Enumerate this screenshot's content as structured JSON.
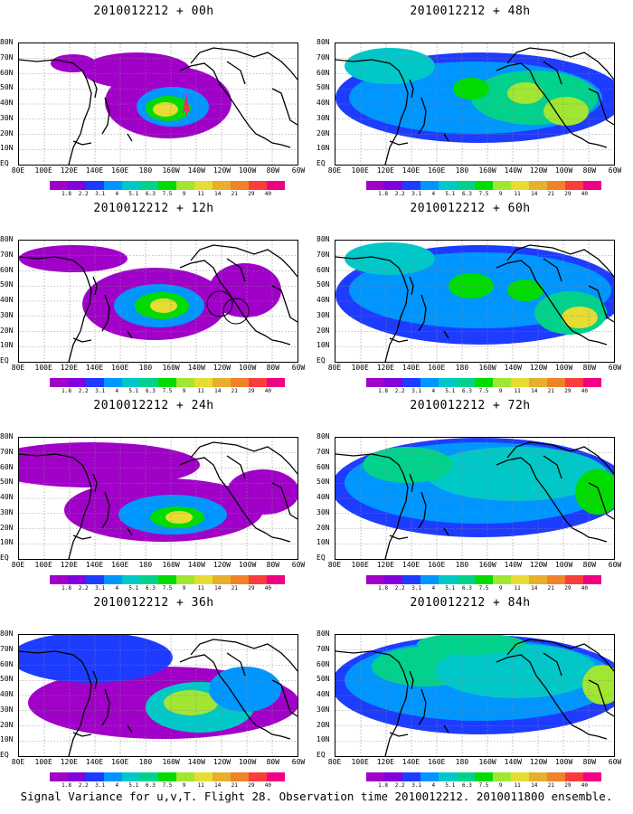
{
  "caption": "Signal Variance for u,v,T. Flight 28. Observation time 2010012212. 2010011800 ensemble.",
  "y_ticks": [
    "80N",
    "70N",
    "60N",
    "50N",
    "40N",
    "30N",
    "20N",
    "10N",
    "EQ"
  ],
  "x_ticks": [
    "80E",
    "100E",
    "120E",
    "140E",
    "160E",
    "180",
    "160W",
    "140W",
    "120W",
    "100W",
    "80W",
    "60W"
  ],
  "colorbar": {
    "labels": [
      "1.8",
      "2.2",
      "3.1",
      "4",
      "5.1",
      "6.3",
      "7.5",
      "9",
      "11",
      "14",
      "21",
      "29",
      "40"
    ],
    "colors": [
      "#a000c8",
      "#8200dc",
      "#1e3cff",
      "#0096ff",
      "#00c8c8",
      "#00d28c",
      "#00dc00",
      "#a0e632",
      "#e6dc32",
      "#e6af2d",
      "#f08228",
      "#fa3c3c",
      "#f00082"
    ]
  },
  "panels": [
    {
      "title": "2010012212 + 00h",
      "id": "p00"
    },
    {
      "title": "2010012212 + 48h",
      "id": "p48"
    },
    {
      "title": "2010012212 + 12h",
      "id": "p12"
    },
    {
      "title": "2010012212 + 60h",
      "id": "p60"
    },
    {
      "title": "2010012212 + 24h",
      "id": "p24"
    },
    {
      "title": "2010012212 + 72h",
      "id": "p72"
    },
    {
      "title": "2010012212 + 36h",
      "id": "p36"
    },
    {
      "title": "2010012212 + 84h",
      "id": "p84"
    }
  ],
  "chart_data": {
    "type": "heatmap",
    "x_range": [
      "80E",
      "60W"
    ],
    "y_range": [
      "EQ",
      "80N"
    ],
    "grid": true,
    "contour_levels": [
      1.8,
      2.2,
      3.1,
      4,
      5.1,
      6.3,
      7.5,
      9,
      11,
      14,
      21,
      29,
      40
    ],
    "maxima": {
      "p00": {
        "lon": "155W",
        "lat": "42N",
        "approx_max": 11
      },
      "p12": {
        "lon": "155W",
        "lat": "38N",
        "approx_max": 11
      },
      "p24": {
        "lon": "150W",
        "lat": "37N",
        "approx_max": 11
      },
      "p36": {
        "lon": "140W",
        "lat": "35N",
        "approx_max": 11
      },
      "p48": {
        "lon": "100W",
        "lat": "40N",
        "approx_max": 11
      },
      "p60": {
        "lon": "90W",
        "lat": "38N",
        "approx_max": 11
      },
      "p72": {
        "lon": "65W",
        "lat": "45N",
        "approx_max": 9
      },
      "p84": {
        "lon": "65W",
        "lat": "45N",
        "approx_max": 9
      }
    }
  }
}
